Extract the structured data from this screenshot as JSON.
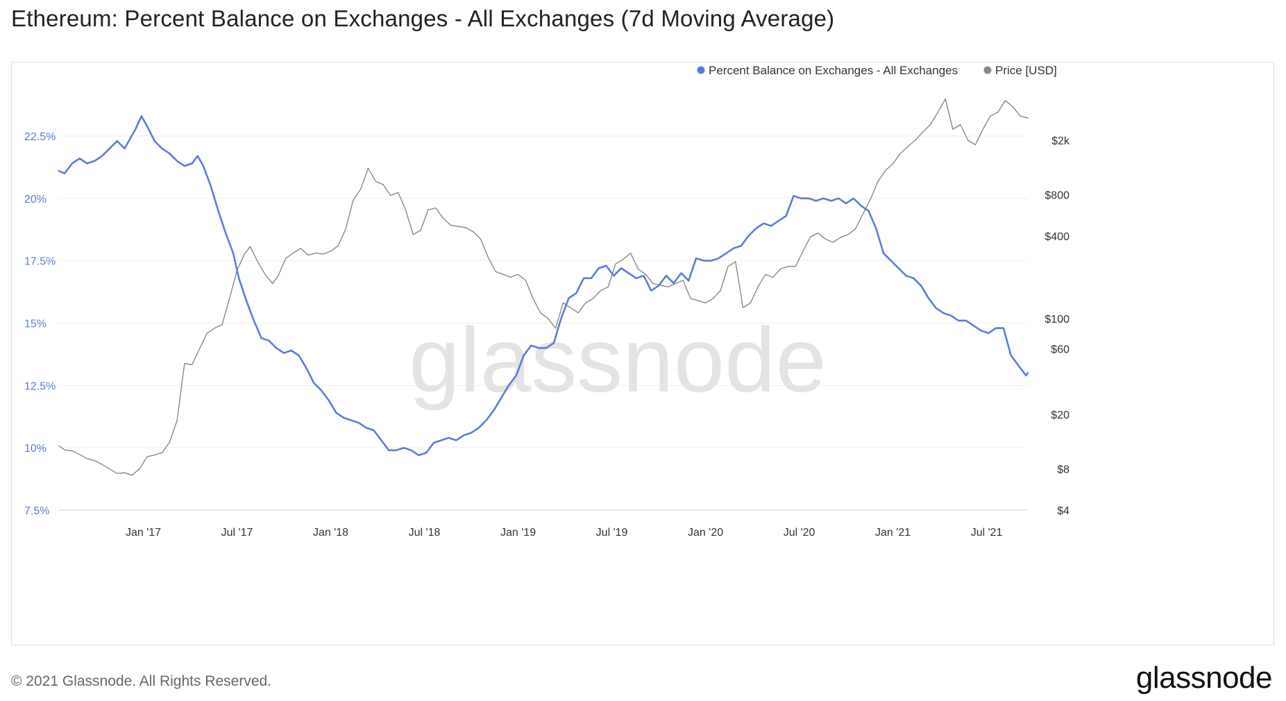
{
  "title": "Ethereum: Percent Balance on Exchanges - All Exchanges (7d Moving Average)",
  "footer": "© 2021 Glassnode. All Rights Reserved.",
  "brand": "glassnode",
  "watermark": "glassnode",
  "chart_data": {
    "type": "line",
    "title": "Ethereum: Percent Balance on Exchanges - All Exchanges (7d Moving Average)",
    "xlabel": "",
    "ylabel_left": "",
    "ylabel_right": "",
    "grid": true,
    "legend": "top-right",
    "x_ticks": [
      "Jan '17",
      "Jul '17",
      "Jan '18",
      "Jul '18",
      "Jan '19",
      "Jul '19",
      "Jan '20",
      "Jul '20",
      "Jan '21",
      "Jul '21"
    ],
    "x_range": [
      2016.55,
      2021.72
    ],
    "left_axis": {
      "ticks": [
        "22.5%",
        "20%",
        "17.5%",
        "15%",
        "12.5%",
        "10%",
        "7.5%"
      ],
      "values": [
        22.5,
        20,
        17.5,
        15,
        12.5,
        10,
        7.5
      ],
      "ylim": [
        7.5,
        24.5
      ],
      "color": "#5b7bdc"
    },
    "right_axis": {
      "ticks": [
        "$2k",
        "$800",
        "$400",
        "$100",
        "$60",
        "$20",
        "$8",
        "$4"
      ],
      "values": [
        2000,
        800,
        400,
        100,
        60,
        20,
        8,
        4
      ],
      "scale": "log",
      "color": "#333333"
    },
    "series": [
      {
        "name": "Percent Balance on Exchanges - All Exchanges",
        "axis": "left",
        "color": "#5b7bdc",
        "points": [
          [
            2016.55,
            21.1
          ],
          [
            2016.58,
            21.0
          ],
          [
            2016.62,
            21.4
          ],
          [
            2016.66,
            21.6
          ],
          [
            2016.7,
            21.4
          ],
          [
            2016.74,
            21.5
          ],
          [
            2016.78,
            21.7
          ],
          [
            2016.82,
            22.0
          ],
          [
            2016.86,
            22.3
          ],
          [
            2016.9,
            22.0
          ],
          [
            2016.93,
            22.4
          ],
          [
            2016.96,
            22.8
          ],
          [
            2016.99,
            23.3
          ],
          [
            2017.02,
            22.9
          ],
          [
            2017.06,
            22.3
          ],
          [
            2017.1,
            22.0
          ],
          [
            2017.14,
            21.8
          ],
          [
            2017.18,
            21.5
          ],
          [
            2017.22,
            21.3
          ],
          [
            2017.26,
            21.4
          ],
          [
            2017.29,
            21.7
          ],
          [
            2017.32,
            21.3
          ],
          [
            2017.36,
            20.5
          ],
          [
            2017.4,
            19.5
          ],
          [
            2017.44,
            18.6
          ],
          [
            2017.48,
            17.8
          ],
          [
            2017.51,
            16.8
          ],
          [
            2017.55,
            15.9
          ],
          [
            2017.59,
            15.1
          ],
          [
            2017.63,
            14.4
          ],
          [
            2017.67,
            14.3
          ],
          [
            2017.71,
            14.0
          ],
          [
            2017.75,
            13.8
          ],
          [
            2017.79,
            13.9
          ],
          [
            2017.83,
            13.7
          ],
          [
            2017.87,
            13.2
          ],
          [
            2017.91,
            12.6
          ],
          [
            2017.95,
            12.3
          ],
          [
            2017.99,
            11.9
          ],
          [
            2018.03,
            11.4
          ],
          [
            2018.07,
            11.2
          ],
          [
            2018.11,
            11.1
          ],
          [
            2018.15,
            11.0
          ],
          [
            2018.19,
            10.8
          ],
          [
            2018.23,
            10.7
          ],
          [
            2018.27,
            10.3
          ],
          [
            2018.31,
            9.9
          ],
          [
            2018.35,
            9.9
          ],
          [
            2018.39,
            10.0
          ],
          [
            2018.43,
            9.9
          ],
          [
            2018.47,
            9.7
          ],
          [
            2018.51,
            9.8
          ],
          [
            2018.55,
            10.2
          ],
          [
            2018.59,
            10.3
          ],
          [
            2018.63,
            10.4
          ],
          [
            2018.67,
            10.3
          ],
          [
            2018.71,
            10.5
          ],
          [
            2018.75,
            10.6
          ],
          [
            2018.79,
            10.8
          ],
          [
            2018.83,
            11.1
          ],
          [
            2018.87,
            11.5
          ],
          [
            2018.91,
            12.0
          ],
          [
            2018.95,
            12.5
          ],
          [
            2018.99,
            12.9
          ],
          [
            2019.03,
            13.7
          ],
          [
            2019.07,
            14.1
          ],
          [
            2019.11,
            14.0
          ],
          [
            2019.15,
            14.0
          ],
          [
            2019.19,
            14.2
          ],
          [
            2019.23,
            15.2
          ],
          [
            2019.27,
            16.0
          ],
          [
            2019.31,
            16.2
          ],
          [
            2019.35,
            16.8
          ],
          [
            2019.39,
            16.8
          ],
          [
            2019.43,
            17.2
          ],
          [
            2019.47,
            17.3
          ],
          [
            2019.51,
            16.9
          ],
          [
            2019.55,
            17.2
          ],
          [
            2019.59,
            17.0
          ],
          [
            2019.63,
            16.8
          ],
          [
            2019.67,
            16.9
          ],
          [
            2019.71,
            16.3
          ],
          [
            2019.75,
            16.5
          ],
          [
            2019.79,
            16.9
          ],
          [
            2019.83,
            16.6
          ],
          [
            2019.87,
            17.0
          ],
          [
            2019.91,
            16.7
          ],
          [
            2019.95,
            17.6
          ],
          [
            2019.99,
            17.5
          ],
          [
            2020.03,
            17.5
          ],
          [
            2020.07,
            17.6
          ],
          [
            2020.11,
            17.8
          ],
          [
            2020.15,
            18.0
          ],
          [
            2020.19,
            18.1
          ],
          [
            2020.23,
            18.5
          ],
          [
            2020.27,
            18.8
          ],
          [
            2020.31,
            19.0
          ],
          [
            2020.35,
            18.9
          ],
          [
            2020.39,
            19.1
          ],
          [
            2020.43,
            19.3
          ],
          [
            2020.47,
            20.1
          ],
          [
            2020.51,
            20.0
          ],
          [
            2020.55,
            20.0
          ],
          [
            2020.59,
            19.9
          ],
          [
            2020.63,
            20.0
          ],
          [
            2020.67,
            19.9
          ],
          [
            2020.71,
            20.0
          ],
          [
            2020.75,
            19.8
          ],
          [
            2020.79,
            20.0
          ],
          [
            2020.83,
            19.7
          ],
          [
            2020.87,
            19.5
          ],
          [
            2020.91,
            18.8
          ],
          [
            2020.95,
            17.8
          ],
          [
            2020.99,
            17.5
          ],
          [
            2021.03,
            17.2
          ],
          [
            2021.07,
            16.9
          ],
          [
            2021.11,
            16.8
          ],
          [
            2021.15,
            16.5
          ],
          [
            2021.19,
            16.0
          ],
          [
            2021.23,
            15.6
          ],
          [
            2021.27,
            15.4
          ],
          [
            2021.31,
            15.3
          ],
          [
            2021.35,
            15.1
          ],
          [
            2021.39,
            15.1
          ],
          [
            2021.43,
            14.9
          ],
          [
            2021.47,
            14.7
          ],
          [
            2021.51,
            14.6
          ],
          [
            2021.55,
            14.8
          ],
          [
            2021.59,
            14.8
          ],
          [
            2021.63,
            13.7
          ],
          [
            2021.67,
            13.3
          ],
          [
            2021.71,
            12.9
          ],
          [
            2021.72,
            13.0
          ]
        ]
      },
      {
        "name": "Price [USD]",
        "axis": "right",
        "color": "#888888",
        "points": [
          [
            2016.55,
            11.8
          ],
          [
            2016.58,
            11.0
          ],
          [
            2016.62,
            10.8
          ],
          [
            2016.66,
            10.2
          ],
          [
            2016.7,
            9.5
          ],
          [
            2016.74,
            9.2
          ],
          [
            2016.78,
            8.6
          ],
          [
            2016.82,
            8.0
          ],
          [
            2016.86,
            7.4
          ],
          [
            2016.9,
            7.5
          ],
          [
            2016.94,
            7.2
          ],
          [
            2016.98,
            8.0
          ],
          [
            2017.02,
            9.8
          ],
          [
            2017.06,
            10.1
          ],
          [
            2017.1,
            10.5
          ],
          [
            2017.14,
            12.5
          ],
          [
            2017.18,
            18
          ],
          [
            2017.22,
            47
          ],
          [
            2017.26,
            46
          ],
          [
            2017.3,
            60
          ],
          [
            2017.34,
            78
          ],
          [
            2017.38,
            85
          ],
          [
            2017.42,
            90
          ],
          [
            2017.46,
            140
          ],
          [
            2017.5,
            225
          ],
          [
            2017.54,
            295
          ],
          [
            2017.57,
            335
          ],
          [
            2017.61,
            260
          ],
          [
            2017.65,
            210
          ],
          [
            2017.69,
            180
          ],
          [
            2017.72,
            205
          ],
          [
            2017.76,
            275
          ],
          [
            2017.8,
            300
          ],
          [
            2017.84,
            325
          ],
          [
            2017.88,
            290
          ],
          [
            2017.92,
            300
          ],
          [
            2017.96,
            295
          ],
          [
            2018.0,
            310
          ],
          [
            2018.04,
            340
          ],
          [
            2018.08,
            450
          ],
          [
            2018.12,
            730
          ],
          [
            2018.16,
            880
          ],
          [
            2018.2,
            1250
          ],
          [
            2018.24,
            1000
          ],
          [
            2018.28,
            950
          ],
          [
            2018.32,
            790
          ],
          [
            2018.36,
            830
          ],
          [
            2018.4,
            620
          ],
          [
            2018.44,
            410
          ],
          [
            2018.48,
            440
          ],
          [
            2018.52,
            620
          ],
          [
            2018.56,
            640
          ],
          [
            2018.6,
            540
          ],
          [
            2018.64,
            480
          ],
          [
            2018.68,
            470
          ],
          [
            2018.72,
            460
          ],
          [
            2018.76,
            430
          ],
          [
            2018.8,
            380
          ],
          [
            2018.84,
            280
          ],
          [
            2018.88,
            220
          ],
          [
            2018.92,
            210
          ],
          [
            2018.96,
            200
          ],
          [
            2019.0,
            210
          ],
          [
            2019.04,
            190
          ],
          [
            2019.08,
            140
          ],
          [
            2019.12,
            110
          ],
          [
            2019.16,
            100
          ],
          [
            2019.2,
            85
          ],
          [
            2019.24,
            130
          ],
          [
            2019.28,
            120
          ],
          [
            2019.32,
            110
          ],
          [
            2019.36,
            130
          ],
          [
            2019.4,
            140
          ],
          [
            2019.44,
            160
          ],
          [
            2019.48,
            170
          ],
          [
            2019.52,
            250
          ],
          [
            2019.56,
            270
          ],
          [
            2019.6,
            300
          ],
          [
            2019.64,
            230
          ],
          [
            2019.68,
            210
          ],
          [
            2019.72,
            180
          ],
          [
            2019.76,
            175
          ],
          [
            2019.8,
            170
          ],
          [
            2019.84,
            180
          ],
          [
            2019.88,
            190
          ],
          [
            2019.92,
            140
          ],
          [
            2019.96,
            135
          ],
          [
            2020.0,
            130
          ],
          [
            2020.04,
            140
          ],
          [
            2020.08,
            160
          ],
          [
            2020.12,
            240
          ],
          [
            2020.16,
            260
          ],
          [
            2020.2,
            120
          ],
          [
            2020.24,
            130
          ],
          [
            2020.28,
            170
          ],
          [
            2020.32,
            210
          ],
          [
            2020.36,
            200
          ],
          [
            2020.4,
            230
          ],
          [
            2020.44,
            240
          ],
          [
            2020.48,
            240
          ],
          [
            2020.52,
            310
          ],
          [
            2020.56,
            395
          ],
          [
            2020.6,
            420
          ],
          [
            2020.64,
            380
          ],
          [
            2020.68,
            360
          ],
          [
            2020.72,
            390
          ],
          [
            2020.76,
            410
          ],
          [
            2020.8,
            450
          ],
          [
            2020.84,
            580
          ],
          [
            2020.88,
            740
          ],
          [
            2020.92,
            1000
          ],
          [
            2020.96,
            1200
          ],
          [
            2021.0,
            1350
          ],
          [
            2021.04,
            1600
          ],
          [
            2021.08,
            1800
          ],
          [
            2021.12,
            2000
          ],
          [
            2021.16,
            2300
          ],
          [
            2021.2,
            2600
          ],
          [
            2021.24,
            3200
          ],
          [
            2021.28,
            4000
          ],
          [
            2021.32,
            2400
          ],
          [
            2021.36,
            2600
          ],
          [
            2021.4,
            2000
          ],
          [
            2021.44,
            1850
          ],
          [
            2021.48,
            2400
          ],
          [
            2021.52,
            3000
          ],
          [
            2021.56,
            3200
          ],
          [
            2021.6,
            3900
          ],
          [
            2021.64,
            3500
          ],
          [
            2021.68,
            3000
          ],
          [
            2021.72,
            2900
          ]
        ]
      }
    ]
  }
}
